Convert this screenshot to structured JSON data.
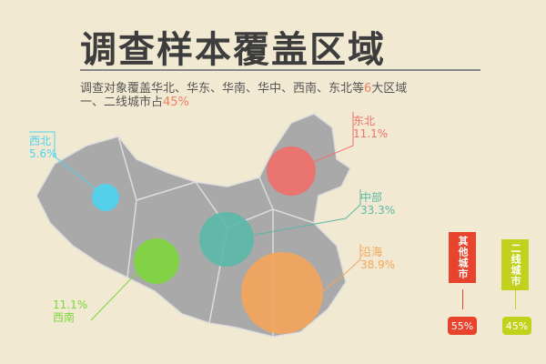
{
  "title": "调查样本覆盖区域",
  "subtitle": {
    "line1_pre": "调查对象覆盖华北、华东、华南、华中、西南、东北等",
    "line1_num": "6",
    "line1_post": "大区域",
    "line2_pre": "一、二线城市占",
    "line2_num": "45%"
  },
  "chart_data": {
    "type": "bubble-map",
    "regions": [
      {
        "name": "西北",
        "value": "5.6%",
        "color": "#4fd3f0"
      },
      {
        "name": "东北",
        "value": "11.1%",
        "color": "#f0706a"
      },
      {
        "name": "中部",
        "value": "33.3%",
        "color": "#5bb8a8"
      },
      {
        "name": "沿海",
        "value": "38.9%",
        "color": "#f4a55c"
      },
      {
        "name": "西南",
        "value": "11.1%",
        "color": "#7ed63c"
      }
    ],
    "city_split": [
      {
        "name": "其他城市",
        "value": "55%",
        "color": "#e8432c"
      },
      {
        "name": "二线城市",
        "value": "45%",
        "color": "#c2d21c"
      }
    ]
  }
}
